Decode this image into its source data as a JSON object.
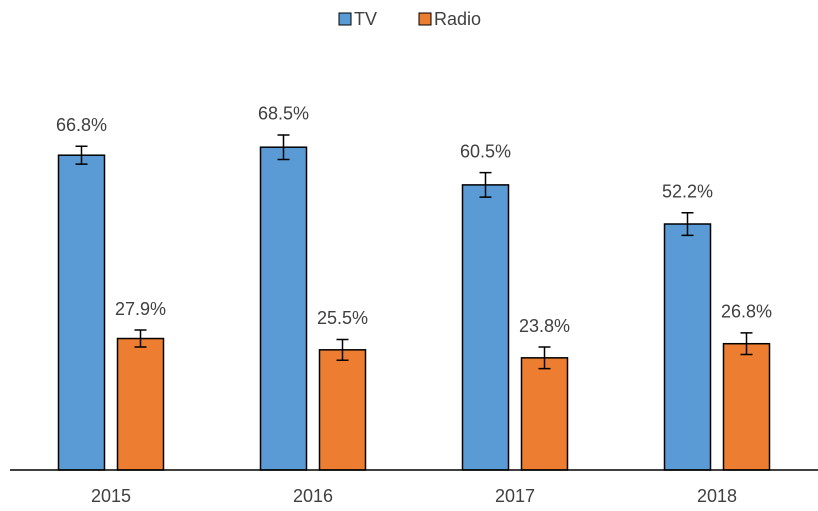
{
  "chart_data": {
    "type": "bar",
    "categories": [
      "2015",
      "2016",
      "2017",
      "2018"
    ],
    "series": [
      {
        "name": "TV",
        "color": "#5b9bd5",
        "values": [
          66.8,
          68.5,
          60.5,
          52.2
        ],
        "value_labels": [
          "66.8%",
          "68.5%",
          "60.5%",
          "52.2%"
        ],
        "errors": [
          1.9,
          2.6,
          2.6,
          2.4
        ]
      },
      {
        "name": "Radio",
        "color": "#ed7d31",
        "values": [
          27.9,
          25.5,
          23.8,
          26.8
        ],
        "value_labels": [
          "27.9%",
          "25.5%",
          "23.8%",
          "26.8%"
        ],
        "errors": [
          1.8,
          2.2,
          2.3,
          2.3
        ]
      }
    ],
    "ylim": [
      0,
      80
    ],
    "legend": "top",
    "grid": false
  }
}
